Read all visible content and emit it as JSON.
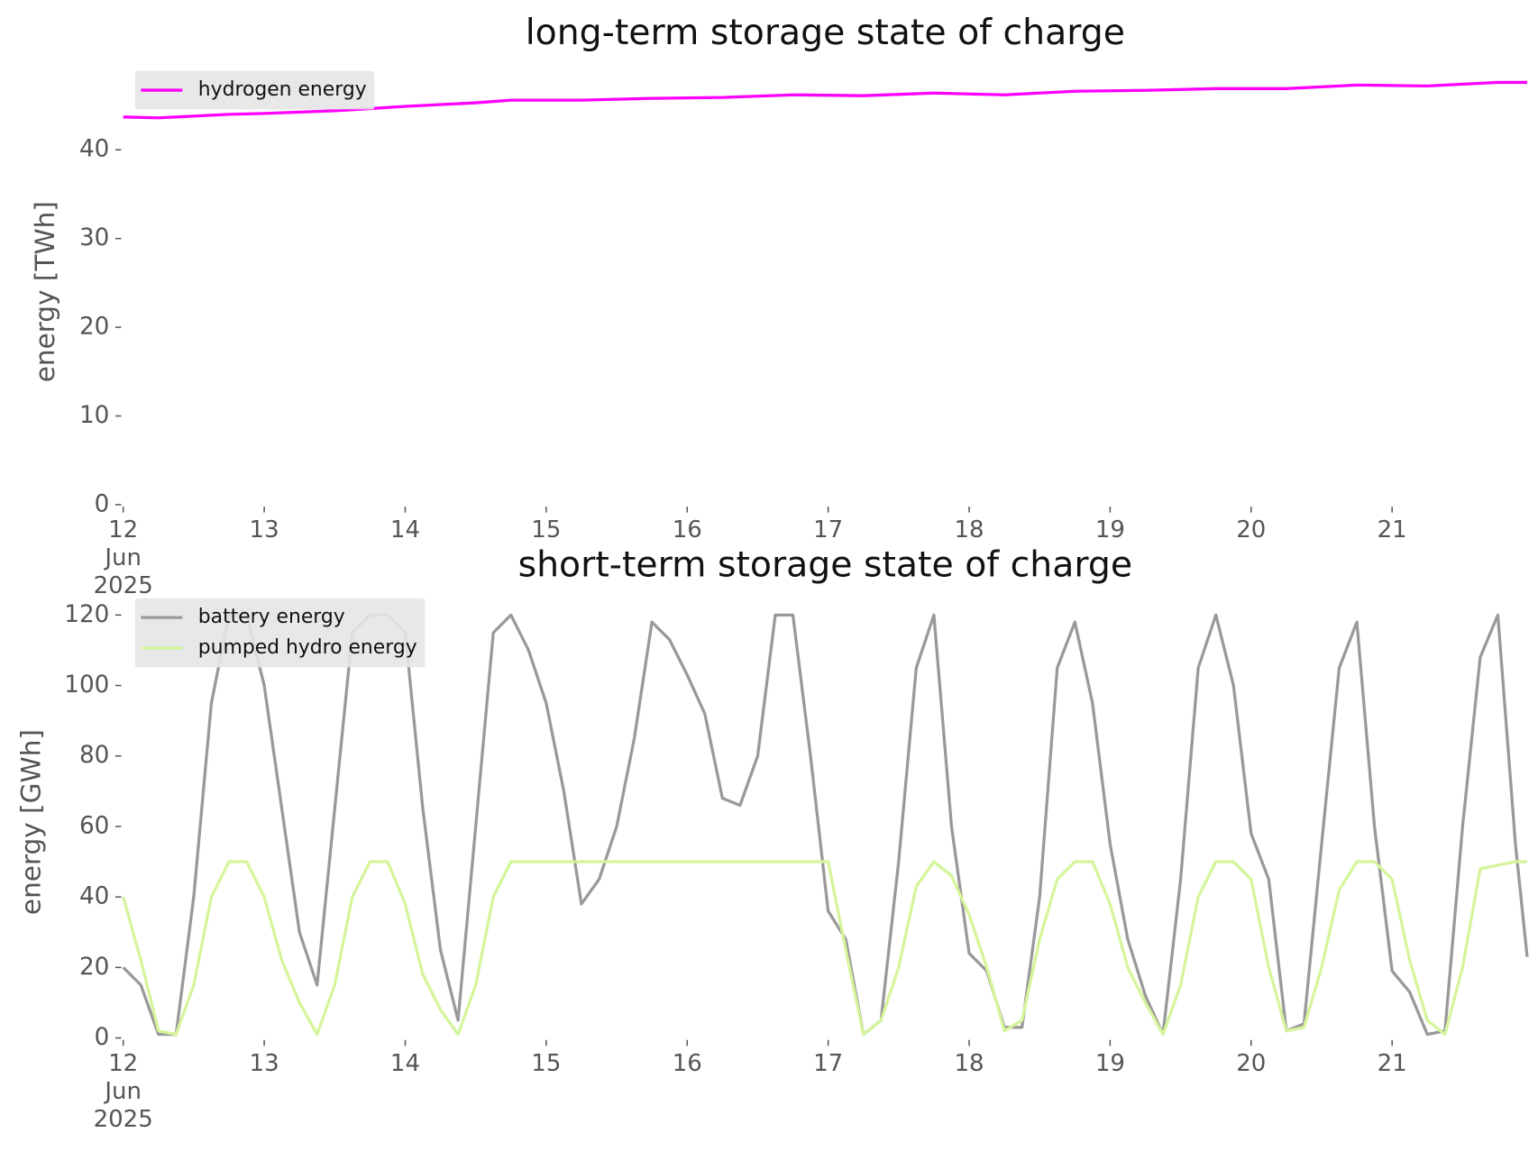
{
  "chart_data": [
    {
      "type": "line",
      "title": "long-term storage state of charge",
      "ylabel": "energy [TWh]",
      "x": [
        12,
        12.25,
        12.75,
        13,
        13.5,
        14,
        14.5,
        14.75,
        15.25,
        15.75,
        16.25,
        16.75,
        17.25,
        17.75,
        18.25,
        18.75,
        19.25,
        19.75,
        20.25,
        20.75,
        21.25,
        21.75,
        21.958
      ],
      "series": [
        {
          "name": "hydrogen energy",
          "color": "#ff00ff",
          "values": [
            43.7,
            43.6,
            44.0,
            44.1,
            44.4,
            44.9,
            45.3,
            45.6,
            45.6,
            45.8,
            45.9,
            46.2,
            46.1,
            46.4,
            46.2,
            46.6,
            46.7,
            46.9,
            46.9,
            47.3,
            47.2,
            47.6,
            47.6
          ]
        }
      ],
      "xlim": [
        12,
        21.958
      ],
      "ylim": [
        0,
        48
      ],
      "xticks": [
        {
          "value": 12,
          "label": "12\nJun\n2025"
        },
        13,
        14,
        15,
        16,
        17,
        18,
        19,
        20,
        21
      ],
      "yticks": [
        0,
        10,
        20,
        30,
        40
      ],
      "legend": "upper left"
    },
    {
      "type": "line",
      "title": "short-term storage state of charge",
      "ylabel": "energy [GWh]",
      "x": [
        12,
        12.125,
        12.25,
        12.375,
        12.5,
        12.625,
        12.75,
        12.875,
        13,
        13.125,
        13.25,
        13.375,
        13.5,
        13.625,
        13.75,
        13.875,
        14,
        14.125,
        14.25,
        14.375,
        14.5,
        14.625,
        14.75,
        14.875,
        15,
        15.125,
        15.25,
        15.375,
        15.5,
        15.625,
        15.75,
        15.875,
        16,
        16.125,
        16.25,
        16.375,
        16.5,
        16.625,
        16.75,
        16.875,
        17,
        17.125,
        17.25,
        17.375,
        17.5,
        17.625,
        17.75,
        17.875,
        18,
        18.125,
        18.25,
        18.375,
        18.5,
        18.625,
        18.75,
        18.875,
        19,
        19.125,
        19.25,
        19.375,
        19.5,
        19.625,
        19.75,
        19.875,
        20,
        20.125,
        20.25,
        20.375,
        20.5,
        20.625,
        20.75,
        20.875,
        21,
        21.125,
        21.25,
        21.375,
        21.5,
        21.625,
        21.75,
        21.875,
        21.958
      ],
      "series": [
        {
          "name": "battery energy",
          "color": "#999999",
          "values": [
            20,
            15,
            1,
            1,
            40,
            95,
            120,
            120,
            100,
            65,
            30,
            15,
            65,
            115,
            120,
            120,
            115,
            65,
            25,
            5,
            60,
            115,
            120,
            110,
            95,
            70,
            38,
            45,
            60,
            85,
            118,
            113,
            103,
            92,
            68,
            66,
            80,
            120,
            120,
            80,
            36,
            28,
            1,
            5,
            50,
            105,
            120,
            60,
            24,
            19,
            3,
            3,
            40,
            105,
            118,
            95,
            55,
            28,
            12,
            1,
            45,
            105,
            120,
            100,
            58,
            45,
            2,
            4,
            55,
            105,
            118,
            60,
            19,
            13,
            1,
            2,
            60,
            108,
            120,
            55,
            23
          ]
        },
        {
          "name": "pumped hydro energy",
          "color": "#d4f59a",
          "values": [
            40,
            22,
            2,
            1,
            15,
            40,
            50,
            50,
            40,
            22,
            10,
            1,
            15,
            40,
            50,
            50,
            38,
            18,
            8,
            1,
            15,
            40,
            50,
            50,
            50,
            50,
            50,
            50,
            50,
            50,
            50,
            50,
            50,
            50,
            50,
            50,
            50,
            50,
            50,
            50,
            50,
            25,
            1,
            5,
            20,
            43,
            50,
            46,
            35,
            20,
            2,
            5,
            28,
            45,
            50,
            50,
            38,
            20,
            10,
            1,
            15,
            40,
            50,
            50,
            45,
            20,
            2,
            3,
            20,
            42,
            50,
            50,
            45,
            22,
            5,
            1,
            20,
            48,
            49,
            50,
            50
          ]
        }
      ],
      "xlim": [
        12,
        21.958
      ],
      "ylim": [
        0,
        122.5
      ],
      "xticks": [
        {
          "value": 12,
          "label": "12\nJun\n2025"
        },
        13,
        14,
        15,
        16,
        17,
        18,
        19,
        20,
        21
      ],
      "yticks": [
        0,
        20,
        40,
        60,
        80,
        100,
        120
      ],
      "legend": "upper left"
    }
  ]
}
